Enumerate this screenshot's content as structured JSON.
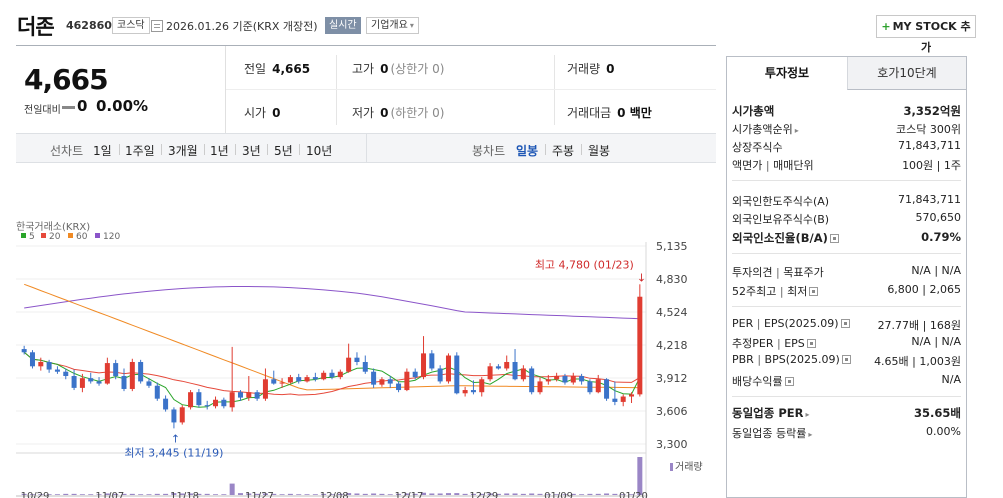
{
  "header": {
    "name": "더존",
    "code": "462860",
    "market": "코스닥",
    "date_text": "2026.01.26 기준(KRX 개장전)",
    "realtime": "실시간",
    "company_info": "기업개요",
    "mystock": "MY STOCK 추가"
  },
  "price": {
    "current": "4,665",
    "diff_label": "전일대비",
    "diff": "0",
    "diff_pct": "0.00%"
  },
  "quote": {
    "prev_label": "전일",
    "prev": "4,665",
    "high_label": "고가",
    "high": "0",
    "high_sub": "(상한가 0)",
    "volume_label": "거래량",
    "volume": "0",
    "open_label": "시가",
    "open": "0",
    "low_label": "저가",
    "low": "0",
    "low_sub": "(하한가 0)",
    "amount_label": "거래대금",
    "amount": "0 백만"
  },
  "period": {
    "line_label": "선차트",
    "line_items": [
      "1일",
      "1주일",
      "3개월",
      "1년",
      "3년",
      "5년",
      "10년"
    ],
    "candle_label": "봉차트",
    "candle_items": [
      "일봉",
      "주봉",
      "월봉"
    ],
    "candle_active": "일봉"
  },
  "chart_data": {
    "type": "candlestick",
    "source_label": "한국거래소(KRX)",
    "legend": [
      {
        "name": "5",
        "color": "#2aa52a"
      },
      {
        "name": "20",
        "color": "#e6493b"
      },
      {
        "name": "60",
        "color": "#f08a24"
      },
      {
        "name": "120",
        "color": "#8b55c9"
      }
    ],
    "y_ticks": [
      "5,135",
      "4,830",
      "4,524",
      "4,218",
      "3,912",
      "3,606",
      "3,300"
    ],
    "ylim": [
      3300,
      5135
    ],
    "x_labels": [
      "10/29",
      "11/07",
      "11/18",
      "11/27",
      "12/08",
      "12/17",
      "12/29",
      "01/09",
      "01/20"
    ],
    "high_label": "최고 4,780 (01/23)",
    "low_label": "최저 3,445 (11/19)",
    "volume_label": "거래량",
    "up_color": "#e03c31",
    "down_color": "#3b73c9",
    "candles": [
      {
        "o": 4180,
        "h": 4210,
        "l": 4130,
        "c": 4150
      },
      {
        "o": 4150,
        "h": 4170,
        "l": 4000,
        "c": 4020
      },
      {
        "o": 4020,
        "h": 4100,
        "l": 3980,
        "c": 4060
      },
      {
        "o": 4060,
        "h": 4080,
        "l": 3960,
        "c": 3990
      },
      {
        "o": 3990,
        "h": 4020,
        "l": 3950,
        "c": 3970
      },
      {
        "o": 3970,
        "h": 4000,
        "l": 3900,
        "c": 3930
      },
      {
        "o": 3930,
        "h": 3990,
        "l": 3800,
        "c": 3820
      },
      {
        "o": 3820,
        "h": 3950,
        "l": 3780,
        "c": 3910
      },
      {
        "o": 3910,
        "h": 3960,
        "l": 3860,
        "c": 3880
      },
      {
        "o": 3880,
        "h": 3920,
        "l": 3840,
        "c": 3860
      },
      {
        "o": 3860,
        "h": 4100,
        "l": 3850,
        "c": 4050
      },
      {
        "o": 4050,
        "h": 4080,
        "l": 3900,
        "c": 3930
      },
      {
        "o": 3930,
        "h": 4000,
        "l": 3790,
        "c": 3810
      },
      {
        "o": 3810,
        "h": 4090,
        "l": 3790,
        "c": 4060
      },
      {
        "o": 4060,
        "h": 4080,
        "l": 3860,
        "c": 3880
      },
      {
        "o": 3880,
        "h": 3910,
        "l": 3820,
        "c": 3840
      },
      {
        "o": 3840,
        "h": 3870,
        "l": 3700,
        "c": 3720
      },
      {
        "o": 3720,
        "h": 3750,
        "l": 3600,
        "c": 3620
      },
      {
        "o": 3620,
        "h": 3640,
        "l": 3445,
        "c": 3500
      },
      {
        "o": 3500,
        "h": 3660,
        "l": 3480,
        "c": 3640
      },
      {
        "o": 3640,
        "h": 3800,
        "l": 3620,
        "c": 3780
      },
      {
        "o": 3780,
        "h": 3810,
        "l": 3640,
        "c": 3660
      },
      {
        "o": 3660,
        "h": 3700,
        "l": 3620,
        "c": 3650
      },
      {
        "o": 3650,
        "h": 3740,
        "l": 3630,
        "c": 3710
      },
      {
        "o": 3710,
        "h": 3730,
        "l": 3630,
        "c": 3650
      },
      {
        "o": 3640,
        "h": 4200,
        "l": 3600,
        "c": 3780
      },
      {
        "o": 3780,
        "h": 3800,
        "l": 3700,
        "c": 3730
      },
      {
        "o": 3730,
        "h": 3930,
        "l": 3700,
        "c": 3780
      },
      {
        "o": 3780,
        "h": 3800,
        "l": 3700,
        "c": 3720
      },
      {
        "o": 3720,
        "h": 4000,
        "l": 3700,
        "c": 3900
      },
      {
        "o": 3900,
        "h": 3980,
        "l": 3850,
        "c": 3860
      },
      {
        "o": 3860,
        "h": 3910,
        "l": 3820,
        "c": 3870
      },
      {
        "o": 3870,
        "h": 3940,
        "l": 3860,
        "c": 3920
      },
      {
        "o": 3920,
        "h": 3950,
        "l": 3860,
        "c": 3880
      },
      {
        "o": 3880,
        "h": 3940,
        "l": 3870,
        "c": 3920
      },
      {
        "o": 3920,
        "h": 3960,
        "l": 3880,
        "c": 3900
      },
      {
        "o": 3900,
        "h": 3980,
        "l": 3890,
        "c": 3960
      },
      {
        "o": 3960,
        "h": 3990,
        "l": 3900,
        "c": 3920
      },
      {
        "o": 3920,
        "h": 3990,
        "l": 3900,
        "c": 3970
      },
      {
        "o": 3970,
        "h": 4230,
        "l": 3960,
        "c": 4100
      },
      {
        "o": 4100,
        "h": 4150,
        "l": 4030,
        "c": 4060
      },
      {
        "o": 4060,
        "h": 4120,
        "l": 3950,
        "c": 3970
      },
      {
        "o": 3970,
        "h": 4000,
        "l": 3820,
        "c": 3850
      },
      {
        "o": 3850,
        "h": 3920,
        "l": 3830,
        "c": 3900
      },
      {
        "o": 3900,
        "h": 3930,
        "l": 3820,
        "c": 3860
      },
      {
        "o": 3860,
        "h": 3880,
        "l": 3780,
        "c": 3800
      },
      {
        "o": 3800,
        "h": 4000,
        "l": 3790,
        "c": 3970
      },
      {
        "o": 3970,
        "h": 4000,
        "l": 3900,
        "c": 3920
      },
      {
        "o": 3920,
        "h": 4300,
        "l": 3900,
        "c": 4140
      },
      {
        "o": 4140,
        "h": 4170,
        "l": 3980,
        "c": 4000
      },
      {
        "o": 4000,
        "h": 4030,
        "l": 3860,
        "c": 3880
      },
      {
        "o": 3880,
        "h": 4140,
        "l": 3860,
        "c": 4120
      },
      {
        "o": 4120,
        "h": 4150,
        "l": 3760,
        "c": 3770
      },
      {
        "o": 3770,
        "h": 3830,
        "l": 3740,
        "c": 3800
      },
      {
        "o": 3800,
        "h": 3890,
        "l": 3760,
        "c": 3780
      },
      {
        "o": 3780,
        "h": 3920,
        "l": 3740,
        "c": 3900
      },
      {
        "o": 3900,
        "h": 4050,
        "l": 3880,
        "c": 4020
      },
      {
        "o": 4020,
        "h": 4040,
        "l": 3990,
        "c": 4000
      },
      {
        "o": 4000,
        "h": 4120,
        "l": 3980,
        "c": 4060
      },
      {
        "o": 4060,
        "h": 4180,
        "l": 3890,
        "c": 3900
      },
      {
        "o": 3900,
        "h": 4030,
        "l": 3880,
        "c": 4000
      },
      {
        "o": 4000,
        "h": 4020,
        "l": 3760,
        "c": 3780
      },
      {
        "o": 3780,
        "h": 3920,
        "l": 3760,
        "c": 3880
      },
      {
        "o": 3880,
        "h": 3940,
        "l": 3850,
        "c": 3900
      },
      {
        "o": 3900,
        "h": 3960,
        "l": 3880,
        "c": 3930
      },
      {
        "o": 3930,
        "h": 3950,
        "l": 3850,
        "c": 3870
      },
      {
        "o": 3870,
        "h": 3960,
        "l": 3850,
        "c": 3930
      },
      {
        "o": 3930,
        "h": 3950,
        "l": 3850,
        "c": 3880
      },
      {
        "o": 3880,
        "h": 3900,
        "l": 3760,
        "c": 3780
      },
      {
        "o": 3780,
        "h": 3940,
        "l": 3770,
        "c": 3900
      },
      {
        "o": 3900,
        "h": 3910,
        "l": 3700,
        "c": 3720
      },
      {
        "o": 3720,
        "h": 3880,
        "l": 3660,
        "c": 3690
      },
      {
        "o": 3690,
        "h": 3760,
        "l": 3650,
        "c": 3740
      },
      {
        "o": 3740,
        "h": 3780,
        "l": 3680,
        "c": 3760
      },
      {
        "o": 3760,
        "h": 4780,
        "l": 3740,
        "c": 4665
      }
    ],
    "volumes": [
      0.03,
      0.02,
      0.02,
      0.02,
      0.02,
      0.03,
      0.03,
      0.02,
      0.02,
      0.02,
      0.04,
      0.03,
      0.03,
      0.03,
      0.02,
      0.02,
      0.03,
      0.03,
      0.05,
      0.04,
      0.04,
      0.03,
      0.03,
      0.02,
      0.02,
      0.3,
      0.05,
      0.04,
      0.03,
      0.04,
      0.03,
      0.02,
      0.03,
      0.02,
      0.02,
      0.02,
      0.03,
      0.02,
      0.03,
      0.05,
      0.04,
      0.03,
      0.04,
      0.03,
      0.02,
      0.03,
      0.04,
      0.03,
      0.06,
      0.04,
      0.04,
      0.05,
      0.05,
      0.03,
      0.03,
      0.03,
      0.04,
      0.03,
      0.04,
      0.04,
      0.03,
      0.04,
      0.03,
      0.02,
      0.02,
      0.02,
      0.03,
      0.02,
      0.03,
      0.03,
      0.04,
      0.03,
      0.02,
      0.02,
      1.0
    ]
  },
  "invest": {
    "tab_active": "투자정보",
    "tab_inactive": "호가10단계",
    "mcap_label": "시가총액",
    "mcap": "3,352억원",
    "mcap_rank_label": "시가총액순위",
    "mcap_rank": "코스닥 300위",
    "shares_label": "상장주식수",
    "shares": "71,843,711",
    "par_label": "액면가",
    "par_sep": "|",
    "unit_label": "매매단위",
    "par_unit": "100원 | 1주",
    "foreign_limit_label": "외국인한도주식수(A)",
    "foreign_limit": "71,843,711",
    "foreign_hold_label": "외국인보유주식수(B)",
    "foreign_hold": "570,650",
    "foreign_ratio_label": "외국인소진율(B/A)",
    "foreign_ratio": "0.79%",
    "opinion_label": "투자의견",
    "target_label": "목표주가",
    "opinion_target": "N/A | N/A",
    "w52_high_label": "52주최고",
    "w52_low_label": "최저",
    "w52": "6,800 | 2,065",
    "per_label": "PER",
    "eps_label": "EPS(2025.09)",
    "per_eps": "27.77배 | 168원",
    "est_per_label": "추정PER",
    "est_eps_label": "EPS",
    "est_per_eps": "N/A | N/A",
    "pbr_label": "PBR",
    "bps_label": "BPS(2025.09)",
    "pbr_bps": "4.65배 | 1,003원",
    "div_label": "배당수익률",
    "div": "N/A",
    "ind_per_label": "동일업종 PER",
    "ind_per": "35.65배",
    "ind_rate_label": "동일업종 등락률",
    "ind_rate": "0.00%"
  }
}
